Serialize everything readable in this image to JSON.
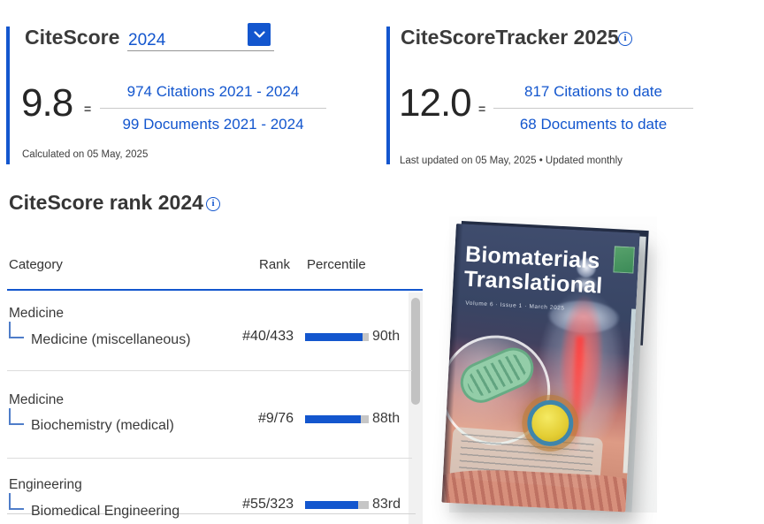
{
  "colors": {
    "accent": "#1356ce"
  },
  "icons": {
    "info_glyph": "i"
  },
  "citescore_card": {
    "title": "CiteScore",
    "year": "2024",
    "score": "9.8",
    "equals": "=",
    "numerator_link": "974 Citations 2021 - 2024",
    "denominator_link": "99 Documents 2021 - 2024",
    "footnote": "Calculated on 05 May, 2025"
  },
  "tracker_card": {
    "title": "CiteScoreTracker 2025",
    "score": "12.0",
    "equals": "=",
    "numerator_link": "817 Citations to date",
    "denominator_link": "68 Documents to date",
    "footnote": "Last updated on 05 May, 2025 • Updated monthly"
  },
  "rank_section": {
    "title": "CiteScore rank 2024",
    "columns": {
      "category": "Category",
      "rank": "Rank",
      "percentile": "Percentile"
    },
    "rows": [
      {
        "parent": "Medicine",
        "subcategory": "Medicine (miscellaneous)",
        "rank": "#40/433",
        "percentile": 90,
        "percentile_label": "90th"
      },
      {
        "parent": "Medicine",
        "subcategory": "Biochemistry (medical)",
        "rank": "#9/76",
        "percentile": 88,
        "percentile_label": "88th"
      },
      {
        "parent": "Engineering",
        "subcategory": "Biomedical Engineering",
        "rank": "#55/323",
        "percentile": 83,
        "percentile_label": "83rd"
      }
    ]
  },
  "cover": {
    "title_line1": "Biomaterials",
    "title_line2": "Translational",
    "issue_line": "Volume 6 · Issue 1 · March 2025"
  }
}
